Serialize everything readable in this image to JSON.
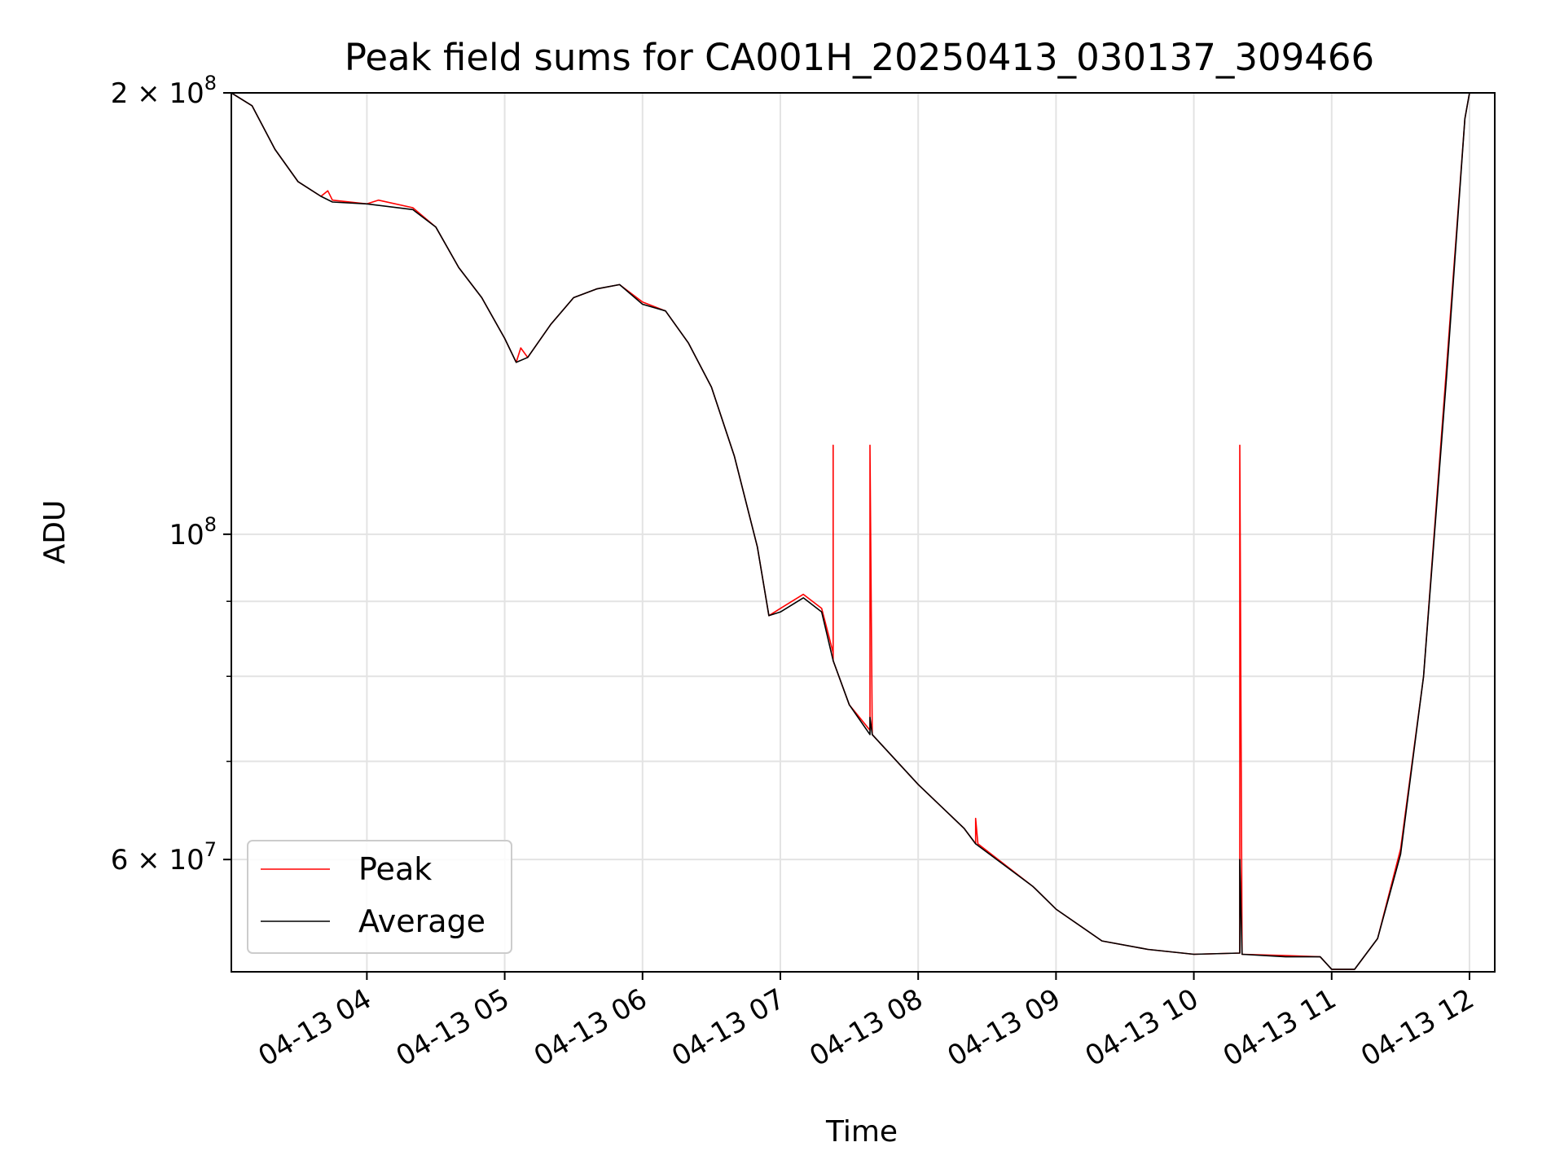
{
  "chart_data": {
    "type": "line",
    "title": "Peak field sums for CA001H_20250413_030137_309466",
    "xlabel": "Time",
    "ylabel": "ADU",
    "yscale": "log",
    "ylim": [
      50300000,
      200000000
    ],
    "xlim": [
      "2025-04-13 03:01",
      "2025-04-13 12:11"
    ],
    "grid": true,
    "legend_position": "lower-left",
    "x_tick_labels": [
      "04-13 04",
      "04-13 05",
      "04-13 06",
      "04-13 07",
      "04-13 08",
      "04-13 09",
      "04-13 10",
      "04-13 11",
      "04-13 12"
    ],
    "y_tick_labels": [
      {
        "base": "2 × 10",
        "exp": "8"
      },
      {
        "base": "10",
        "exp": "8"
      },
      {
        "base": "6 × 10",
        "exp": "7"
      }
    ],
    "series": [
      {
        "name": "Peak",
        "color": "#ff0000",
        "points": [
          [
            "2025-04-13 03:01",
            200000000
          ],
          [
            "2025-04-13 03:10",
            196000000
          ],
          [
            "2025-04-13 03:20",
            183000000
          ],
          [
            "2025-04-13 03:30",
            174000000
          ],
          [
            "2025-04-13 03:40",
            170000000
          ],
          [
            "2025-04-13 03:43",
            171500000
          ],
          [
            "2025-04-13 03:45",
            169000000
          ],
          [
            "2025-04-13 04:00",
            168000000
          ],
          [
            "2025-04-13 04:05",
            169000000
          ],
          [
            "2025-04-13 04:20",
            167000000
          ],
          [
            "2025-04-13 04:30",
            162000000
          ],
          [
            "2025-04-13 04:40",
            152000000
          ],
          [
            "2025-04-13 04:50",
            145000000
          ],
          [
            "2025-04-13 05:00",
            136000000
          ],
          [
            "2025-04-13 05:05",
            131000000
          ],
          [
            "2025-04-13 05:07",
            134000000
          ],
          [
            "2025-04-13 05:10",
            132000000
          ],
          [
            "2025-04-13 05:20",
            139000000
          ],
          [
            "2025-04-13 05:30",
            145000000
          ],
          [
            "2025-04-13 05:40",
            147000000
          ],
          [
            "2025-04-13 05:50",
            148000000
          ],
          [
            "2025-04-13 06:00",
            144000000
          ],
          [
            "2025-04-13 06:10",
            142000000
          ],
          [
            "2025-04-13 06:20",
            135000000
          ],
          [
            "2025-04-13 06:30",
            126000000
          ],
          [
            "2025-04-13 06:40",
            113000000
          ],
          [
            "2025-04-13 06:50",
            98000000
          ],
          [
            "2025-04-13 06:55",
            88000000
          ],
          [
            "2025-04-13 07:00",
            89000000
          ],
          [
            "2025-04-13 07:10",
            91000000
          ],
          [
            "2025-04-13 07:18",
            89000000
          ],
          [
            "2025-04-13 07:23",
            83000000
          ],
          [
            "2025-04-13 07:23",
            115000000
          ],
          [
            "2025-04-13 07:23",
            82000000
          ],
          [
            "2025-04-13 07:30",
            76500000
          ],
          [
            "2025-04-13 07:39",
            73500000
          ],
          [
            "2025-04-13 07:39",
            115000000
          ],
          [
            "2025-04-13 07:40",
            73000000
          ],
          [
            "2025-04-13 08:00",
            67500000
          ],
          [
            "2025-04-13 08:20",
            63000000
          ],
          [
            "2025-04-13 08:25",
            61500000
          ],
          [
            "2025-04-13 08:25",
            64000000
          ],
          [
            "2025-04-13 08:26",
            61500000
          ],
          [
            "2025-04-13 08:50",
            57500000
          ],
          [
            "2025-04-13 08:55",
            56500000
          ],
          [
            "2025-04-13 09:00",
            55500000
          ],
          [
            "2025-04-13 09:20",
            52800000
          ],
          [
            "2025-04-13 09:40",
            52100000
          ],
          [
            "2025-04-13 10:00",
            51700000
          ],
          [
            "2025-04-13 10:20",
            51800000
          ],
          [
            "2025-04-13 10:20",
            115000000
          ],
          [
            "2025-04-13 10:21",
            51700000
          ],
          [
            "2025-04-13 10:40",
            51600000
          ],
          [
            "2025-04-13 10:55",
            51500000
          ],
          [
            "2025-04-13 11:00",
            50500000
          ],
          [
            "2025-04-13 11:10",
            50500000
          ],
          [
            "2025-04-13 11:20",
            53000000
          ],
          [
            "2025-04-13 11:30",
            61000000
          ],
          [
            "2025-04-13 11:40",
            80000000
          ],
          [
            "2025-04-13 11:50",
            130000000
          ],
          [
            "2025-04-13 11:58",
            192000000
          ],
          [
            "2025-04-13 12:00",
            200000000
          ]
        ]
      },
      {
        "name": "Average",
        "color": "#000000",
        "points": [
          [
            "2025-04-13 03:01",
            200000000
          ],
          [
            "2025-04-13 03:10",
            196000000
          ],
          [
            "2025-04-13 03:20",
            183000000
          ],
          [
            "2025-04-13 03:30",
            174000000
          ],
          [
            "2025-04-13 03:40",
            170000000
          ],
          [
            "2025-04-13 03:45",
            168500000
          ],
          [
            "2025-04-13 04:00",
            168000000
          ],
          [
            "2025-04-13 04:20",
            166500000
          ],
          [
            "2025-04-13 04:30",
            162000000
          ],
          [
            "2025-04-13 04:40",
            152000000
          ],
          [
            "2025-04-13 04:50",
            145000000
          ],
          [
            "2025-04-13 05:00",
            136000000
          ],
          [
            "2025-04-13 05:05",
            131000000
          ],
          [
            "2025-04-13 05:10",
            132000000
          ],
          [
            "2025-04-13 05:20",
            139000000
          ],
          [
            "2025-04-13 05:30",
            145000000
          ],
          [
            "2025-04-13 05:40",
            147000000
          ],
          [
            "2025-04-13 05:50",
            148000000
          ],
          [
            "2025-04-13 06:00",
            143500000
          ],
          [
            "2025-04-13 06:10",
            142000000
          ],
          [
            "2025-04-13 06:20",
            135000000
          ],
          [
            "2025-04-13 06:30",
            126000000
          ],
          [
            "2025-04-13 06:40",
            113000000
          ],
          [
            "2025-04-13 06:50",
            98000000
          ],
          [
            "2025-04-13 06:55",
            88000000
          ],
          [
            "2025-04-13 07:00",
            88500000
          ],
          [
            "2025-04-13 07:10",
            90500000
          ],
          [
            "2025-04-13 07:18",
            88500000
          ],
          [
            "2025-04-13 07:23",
            82000000
          ],
          [
            "2025-04-13 07:30",
            76500000
          ],
          [
            "2025-04-13 07:39",
            73000000
          ],
          [
            "2025-04-13 07:39",
            75000000
          ],
          [
            "2025-04-13 07:40",
            73000000
          ],
          [
            "2025-04-13 08:00",
            67500000
          ],
          [
            "2025-04-13 08:20",
            63000000
          ],
          [
            "2025-04-13 08:25",
            61500000
          ],
          [
            "2025-04-13 08:50",
            57500000
          ],
          [
            "2025-04-13 09:00",
            55500000
          ],
          [
            "2025-04-13 09:20",
            52800000
          ],
          [
            "2025-04-13 09:40",
            52100000
          ],
          [
            "2025-04-13 10:00",
            51700000
          ],
          [
            "2025-04-13 10:20",
            51800000
          ],
          [
            "2025-04-13 10:20",
            60000000
          ],
          [
            "2025-04-13 10:21",
            51700000
          ],
          [
            "2025-04-13 10:40",
            51500000
          ],
          [
            "2025-04-13 10:55",
            51500000
          ],
          [
            "2025-04-13 11:00",
            50500000
          ],
          [
            "2025-04-13 11:10",
            50500000
          ],
          [
            "2025-04-13 11:20",
            53000000
          ],
          [
            "2025-04-13 11:30",
            60500000
          ],
          [
            "2025-04-13 11:40",
            80000000
          ],
          [
            "2025-04-13 11:50",
            128000000
          ],
          [
            "2025-04-13 11:58",
            192000000
          ],
          [
            "2025-04-13 12:00",
            200000000
          ]
        ]
      }
    ]
  }
}
